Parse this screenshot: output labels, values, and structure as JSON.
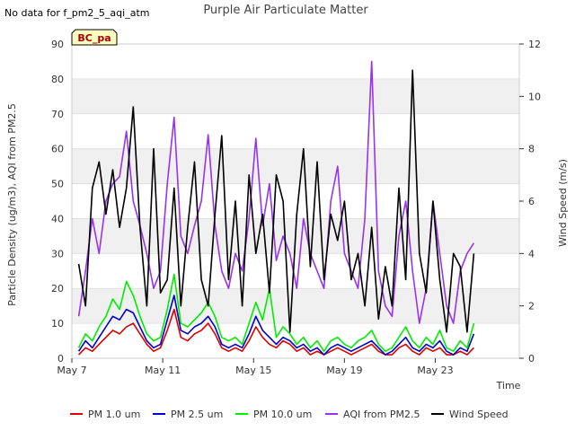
{
  "chart_data": {
    "type": "line",
    "title": "Purple Air Particulate Matter",
    "note": "No data for f_pm2_5_aqi_atm",
    "site_label": "BC_pa",
    "xlabel": "Time",
    "ylabel": "Particle Density (ug/m3), AQI from PM2.5",
    "y2label": "Wind Speed (m/s)",
    "xlim": [
      0,
      19.7
    ],
    "ylim": [
      0,
      90
    ],
    "y2lim": [
      0,
      12
    ],
    "xticks": [
      {
        "x": 0,
        "label": "May 7"
      },
      {
        "x": 4,
        "label": "May 11"
      },
      {
        "x": 8,
        "label": "May 15"
      },
      {
        "x": 12,
        "label": "May 19"
      },
      {
        "x": 16,
        "label": "May 23"
      }
    ],
    "yticks": [
      0,
      10,
      20,
      30,
      40,
      50,
      60,
      70,
      80,
      90
    ],
    "y2ticks": [
      0,
      2,
      4,
      6,
      8,
      10,
      12
    ],
    "x_unit": "days after May 7",
    "legend_position": "bottom",
    "colors": {
      "pm1": "#dd0000",
      "pm25": "#0000cc",
      "pm10": "#00ee00",
      "aqi": "#9933ee",
      "wind": "#000000",
      "band": "#f0f0f0",
      "grid": "#dddddd"
    },
    "series": [
      {
        "name": "PM 1.0 um",
        "key": "pm1",
        "axis": "left",
        "x": [
          0.3,
          0.6,
          0.9,
          1.2,
          1.5,
          1.8,
          2.1,
          2.4,
          2.7,
          3.0,
          3.3,
          3.6,
          3.9,
          4.2,
          4.5,
          4.8,
          5.1,
          5.4,
          5.7,
          6.0,
          6.3,
          6.6,
          6.9,
          7.2,
          7.5,
          7.8,
          8.1,
          8.4,
          8.7,
          9.0,
          9.3,
          9.6,
          9.9,
          10.2,
          10.5,
          10.8,
          11.1,
          11.4,
          11.7,
          12.0,
          12.3,
          12.6,
          12.9,
          13.2,
          13.5,
          13.8,
          14.1,
          14.4,
          14.7,
          15.0,
          15.3,
          15.6,
          15.9,
          16.2,
          16.5,
          16.8,
          17.1,
          17.4,
          17.7
        ],
        "y": [
          1,
          3,
          2,
          4,
          6,
          8,
          7,
          9,
          10,
          7,
          4,
          2,
          3,
          8,
          14,
          6,
          5,
          7,
          8,
          10,
          7,
          3,
          2,
          3,
          2,
          5,
          9,
          6,
          4,
          3,
          5,
          4,
          2,
          3,
          1,
          2,
          1,
          2,
          3,
          2,
          1,
          2,
          3,
          4,
          2,
          1,
          1,
          3,
          4,
          2,
          1,
          3,
          2,
          3,
          1,
          1,
          2,
          1,
          3
        ]
      },
      {
        "name": "PM 2.5 um",
        "key": "pm25",
        "axis": "left",
        "x": [
          0.3,
          0.6,
          0.9,
          1.2,
          1.5,
          1.8,
          2.1,
          2.4,
          2.7,
          3.0,
          3.3,
          3.6,
          3.9,
          4.2,
          4.5,
          4.8,
          5.1,
          5.4,
          5.7,
          6.0,
          6.3,
          6.6,
          6.9,
          7.2,
          7.5,
          7.8,
          8.1,
          8.4,
          8.7,
          9.0,
          9.3,
          9.6,
          9.9,
          10.2,
          10.5,
          10.8,
          11.1,
          11.4,
          11.7,
          12.0,
          12.3,
          12.6,
          12.9,
          13.2,
          13.5,
          13.8,
          14.1,
          14.4,
          14.7,
          15.0,
          15.3,
          15.6,
          15.9,
          16.2,
          16.5,
          16.8,
          17.1,
          17.4,
          17.7
        ],
        "y": [
          2,
          5,
          3,
          6,
          9,
          12,
          11,
          14,
          13,
          9,
          5,
          3,
          4,
          11,
          18,
          8,
          7,
          9,
          10,
          12,
          9,
          4,
          3,
          4,
          3,
          7,
          12,
          8,
          6,
          4,
          6,
          5,
          3,
          4,
          2,
          3,
          1,
          3,
          4,
          3,
          2,
          3,
          4,
          5,
          3,
          1,
          2,
          4,
          6,
          3,
          2,
          4,
          3,
          5,
          2,
          1,
          3,
          2,
          7
        ]
      },
      {
        "name": "PM 10.0 um",
        "key": "pm10",
        "axis": "left",
        "x": [
          0.3,
          0.6,
          0.9,
          1.2,
          1.5,
          1.8,
          2.1,
          2.4,
          2.7,
          3.0,
          3.3,
          3.6,
          3.9,
          4.2,
          4.5,
          4.8,
          5.1,
          5.4,
          5.7,
          6.0,
          6.3,
          6.6,
          6.9,
          7.2,
          7.5,
          7.8,
          8.1,
          8.4,
          8.7,
          9.0,
          9.3,
          9.6,
          9.9,
          10.2,
          10.5,
          10.8,
          11.1,
          11.4,
          11.7,
          12.0,
          12.3,
          12.6,
          12.9,
          13.2,
          13.5,
          13.8,
          14.1,
          14.4,
          14.7,
          15.0,
          15.3,
          15.6,
          15.9,
          16.2,
          16.5,
          16.8,
          17.1,
          17.4,
          17.7
        ],
        "y": [
          3,
          7,
          5,
          9,
          12,
          17,
          14,
          22,
          18,
          12,
          7,
          5,
          6,
          14,
          24,
          10,
          9,
          11,
          13,
          16,
          12,
          6,
          5,
          6,
          4,
          10,
          16,
          11,
          20,
          6,
          9,
          7,
          4,
          6,
          3,
          5,
          2,
          5,
          6,
          4,
          3,
          5,
          6,
          8,
          4,
          2,
          3,
          6,
          9,
          5,
          3,
          6,
          4,
          8,
          3,
          2,
          5,
          3,
          10
        ]
      },
      {
        "name": "AQI from PM2.5",
        "key": "aqi",
        "axis": "left",
        "x": [
          0.3,
          0.6,
          0.9,
          1.2,
          1.5,
          1.8,
          2.1,
          2.4,
          2.7,
          3.0,
          3.3,
          3.6,
          3.9,
          4.2,
          4.5,
          4.8,
          5.1,
          5.4,
          5.7,
          6.0,
          6.3,
          6.6,
          6.9,
          7.2,
          7.5,
          7.8,
          8.1,
          8.4,
          8.7,
          9.0,
          9.3,
          9.6,
          9.9,
          10.2,
          10.5,
          10.8,
          11.1,
          11.4,
          11.7,
          12.0,
          12.3,
          12.6,
          12.9,
          13.2,
          13.5,
          13.8,
          14.1,
          14.4,
          14.7,
          15.0,
          15.3,
          15.6,
          15.9,
          16.2,
          16.5,
          16.8,
          17.1,
          17.4,
          17.7
        ],
        "y": [
          12,
          25,
          40,
          30,
          45,
          50,
          52,
          65,
          45,
          38,
          30,
          20,
          25,
          50,
          69,
          35,
          30,
          38,
          45,
          64,
          38,
          25,
          20,
          30,
          25,
          40,
          63,
          38,
          50,
          28,
          35,
          30,
          20,
          40,
          30,
          25,
          20,
          45,
          55,
          30,
          25,
          20,
          40,
          85,
          25,
          15,
          12,
          35,
          45,
          25,
          10,
          20,
          45,
          30,
          15,
          10,
          25,
          30,
          33
        ]
      },
      {
        "name": "Wind Speed",
        "key": "wind",
        "axis": "right",
        "x": [
          0.3,
          0.6,
          0.9,
          1.2,
          1.5,
          1.8,
          2.1,
          2.4,
          2.7,
          3.0,
          3.3,
          3.6,
          3.9,
          4.2,
          4.5,
          4.8,
          5.1,
          5.4,
          5.7,
          6.0,
          6.3,
          6.6,
          6.9,
          7.2,
          7.5,
          7.8,
          8.1,
          8.4,
          8.7,
          9.0,
          9.3,
          9.6,
          9.9,
          10.2,
          10.5,
          10.8,
          11.1,
          11.4,
          11.7,
          12.0,
          12.3,
          12.6,
          12.9,
          13.2,
          13.5,
          13.8,
          14.1,
          14.4,
          14.7,
          15.0,
          15.3,
          15.6,
          15.9,
          16.2,
          16.5,
          16.8,
          17.1,
          17.4,
          17.7
        ],
        "y": [
          3.6,
          2.0,
          6.5,
          7.5,
          5.5,
          7.2,
          5.0,
          6.5,
          9.6,
          5.0,
          2.0,
          8.0,
          2.5,
          3.0,
          6.5,
          2.0,
          5.0,
          7.5,
          3.0,
          2.0,
          5.5,
          8.5,
          3.0,
          6.0,
          2.0,
          7.0,
          4.0,
          5.5,
          2.5,
          7.0,
          6.0,
          1.0,
          5.5,
          8.0,
          3.5,
          7.5,
          3.0,
          5.5,
          4.5,
          6.0,
          3.0,
          4.0,
          2.0,
          5.0,
          1.5,
          3.5,
          2.0,
          6.5,
          3.0,
          11.0,
          4.0,
          2.5,
          6.0,
          3.0,
          1.0,
          4.0,
          3.5,
          1.0,
          4.0
        ]
      }
    ]
  }
}
